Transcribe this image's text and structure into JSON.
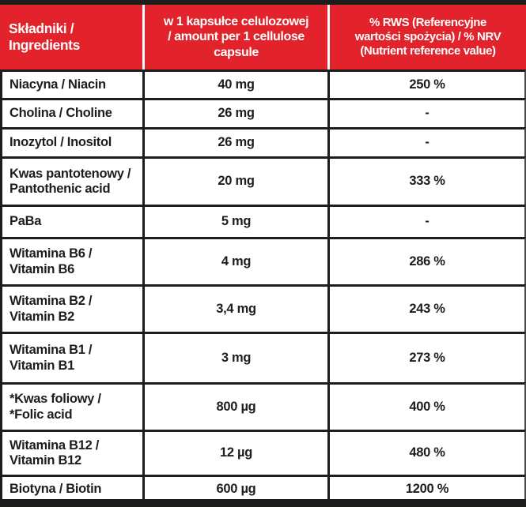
{
  "label": {
    "colors": {
      "header_red": "#e3232b",
      "border_black": "#1d1d1b",
      "header_text": "#ffffff",
      "body_text": "#1d1d1b"
    },
    "header": {
      "ingredients": "Składniki /\nIngredients",
      "amount": "w 1 kapsułce celulozowej\n/ amount per 1 cellulose\ncapsule",
      "nrv": "% RWS (Referencyjne\nwartości spożycia) / % NRV\n(Nutrient reference value)"
    },
    "rows": [
      {
        "name": "Niacyna / Niacin",
        "amount": "40 mg",
        "nrv": "250 %"
      },
      {
        "name": "Cholina / Choline",
        "amount": "26 mg",
        "nrv": "-"
      },
      {
        "name": "Inozytol / Inositol",
        "amount": "26 mg",
        "nrv": "-"
      },
      {
        "name": "Kwas pantotenowy /\nPantothenic acid",
        "amount": "20 mg",
        "nrv": "333 %"
      },
      {
        "name": "PaBa",
        "amount": "5 mg",
        "nrv": "-"
      },
      {
        "name": "Witamina B6 /\nVitamin B6",
        "amount": "4 mg",
        "nrv": "286 %"
      },
      {
        "name": "Witamina B2 /\nVitamin B2",
        "amount": "3,4 mg",
        "nrv": "243 %"
      },
      {
        "name": "Witamina B1 /\nVitamin B1",
        "amount": "3 mg",
        "nrv": "273 %"
      },
      {
        "name": "*Kwas foliowy /\n*Folic acid",
        "amount": "800 µg",
        "nrv": "400 %"
      },
      {
        "name": "Witamina B12 /\nVitamin B12",
        "amount": "12 µg",
        "nrv": "480 %"
      },
      {
        "name": "Biotyna / Biotin",
        "amount": "600 µg",
        "nrv": "1200 %"
      }
    ]
  }
}
